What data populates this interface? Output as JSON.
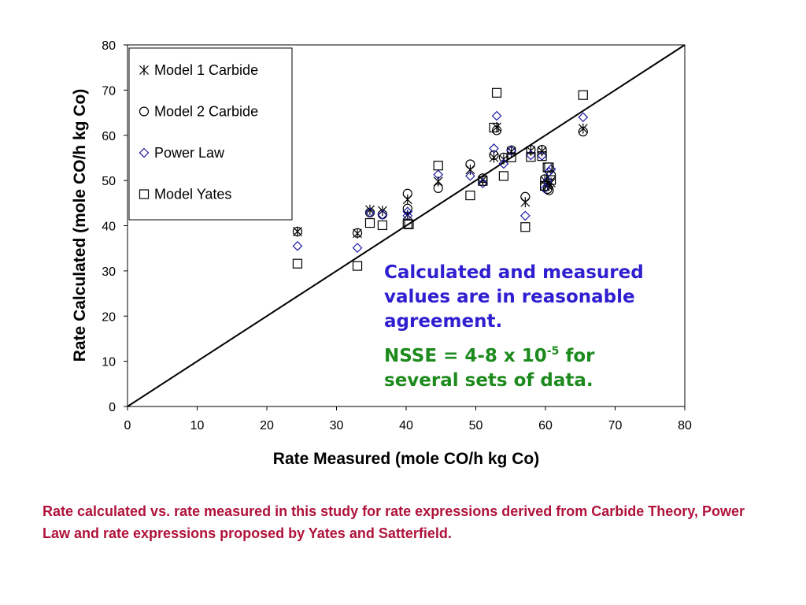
{
  "chart_data": {
    "type": "scatter",
    "xlabel": "Rate Measured (mole CO/h kg Co)",
    "ylabel": "Rate Calculated (mole CO/h kg Co)",
    "xlim": [
      0,
      80
    ],
    "ylim": [
      0,
      80
    ],
    "xticks": [
      "0",
      "10",
      "20",
      "30",
      "40",
      "50",
      "60",
      "70",
      "80"
    ],
    "yticks": [
      "0",
      "10",
      "20",
      "30",
      "40",
      "50",
      "60",
      "70",
      "80"
    ],
    "legend_position": "top-left",
    "grid": false,
    "reference_line": {
      "type": "parity",
      "from": [
        0,
        0
      ],
      "to": [
        80,
        80
      ],
      "color": "#000000"
    },
    "series": [
      {
        "name": "Model 1 Carbide",
        "marker": "asterisk",
        "color": "#000000",
        "x": [
          24.4,
          33,
          34.8,
          36.6,
          40.2,
          40.2,
          44.6,
          49.2,
          51,
          52.6,
          53,
          54,
          55.1,
          57.1,
          57.9,
          59.5,
          59.9,
          60.3,
          60.5,
          60.8,
          65.4
        ],
        "y": [
          38.7,
          38.3,
          43.5,
          43.3,
          45.8,
          42.4,
          49.8,
          52.4,
          50.1,
          55.1,
          61.8,
          54.7,
          56.4,
          45.2,
          56.6,
          56.5,
          50,
          48.9,
          49.4,
          49.5,
          61.5
        ]
      },
      {
        "name": "Model 2 Carbide",
        "marker": "circle",
        "color": "#000000",
        "x": [
          24.4,
          33,
          34.8,
          36.6,
          40.2,
          40.2,
          44.6,
          49.2,
          51,
          52.6,
          53,
          54,
          55.1,
          57.1,
          57.9,
          59.5,
          59.9,
          60.3,
          60.5,
          60.8,
          65.4
        ],
        "y": [
          38.7,
          38.4,
          42.9,
          42.5,
          47.1,
          43.8,
          48.3,
          53.6,
          50.5,
          55.6,
          61.1,
          55.1,
          56.7,
          46.4,
          56.8,
          56.8,
          50.3,
          48.1,
          47.8,
          51.2,
          60.8
        ]
      },
      {
        "name": "Power Law",
        "marker": "diamond",
        "color": "#1a1aa0",
        "x": [
          24.4,
          33,
          34.8,
          36.6,
          40.2,
          40.2,
          44.6,
          49.2,
          51,
          52.6,
          53,
          54,
          55.1,
          57.1,
          57.9,
          59.5,
          59.9,
          60.3,
          60.5,
          60.8,
          65.4
        ],
        "y": [
          35.5,
          35.1,
          42.9,
          42.4,
          43.1,
          42.2,
          51.3,
          51,
          49.4,
          57.1,
          64.3,
          53.7,
          56.6,
          42.2,
          55.6,
          55.5,
          48.2,
          49.9,
          51.9,
          52.5,
          64
        ]
      },
      {
        "name": "Model Yates",
        "marker": "square",
        "color": "#000000",
        "x": [
          24.4,
          33,
          34.8,
          36.6,
          40.2,
          40.4,
          44.6,
          49.2,
          51,
          52.6,
          53,
          54,
          55.1,
          57.1,
          57.9,
          59.5,
          59.9,
          60.3,
          60.5,
          60.8,
          65.4
        ],
        "y": [
          31.6,
          31.1,
          40.6,
          40.1,
          40.4,
          40.3,
          53.3,
          46.7,
          49.9,
          61.7,
          69.4,
          51,
          55.1,
          39.7,
          55.2,
          55.4,
          48.8,
          52.9,
          52.9,
          50.1,
          68.9
        ]
      }
    ]
  },
  "annotations": {
    "agreement_note": "Calculated and measured values are in reasonable agreement.",
    "nsse_prefix": "NSSE = 4-8 x 10",
    "nsse_exponent": "-5",
    "nsse_suffix": " for several sets of data.",
    "agreement_color": "#2f1fd0",
    "nsse_color": "#1d8a1d"
  },
  "caption": {
    "text": "Rate calculated vs. rate measured in this study for rate expressions derived from Carbide Theory, Power Law and rate expressions proposed by Yates and Satterfield.",
    "color": "#b0123a"
  }
}
